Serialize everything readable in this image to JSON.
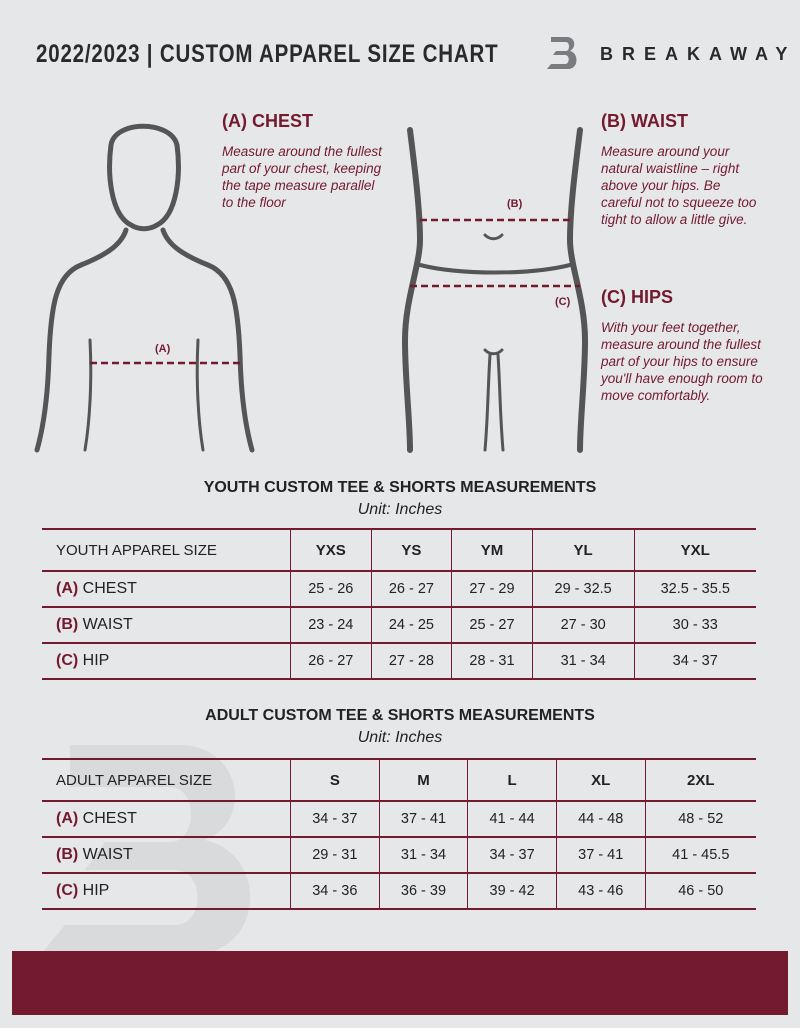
{
  "header": {
    "title": "2022/2023  |  CUSTOM APPAREL SIZE CHART",
    "brand": "BREAKAWAY",
    "logo_letter": "B"
  },
  "measures": {
    "chest": {
      "heading": "(A) CHEST",
      "text": "Measure around the fullest part of your chest, keeping the tape measure parallel to the floor",
      "marker": "(A)"
    },
    "waist": {
      "heading": "(B) WAIST",
      "text": "Measure around your natural waistline – right above your hips. Be careful not to squeeze too tight to allow a little give.",
      "marker": "(B)"
    },
    "hips": {
      "heading": "(C) HIPS",
      "text": "With your feet together, measure around the fullest part of your hips to ensure you'll have enough room to move comfortably.",
      "marker": "(C)"
    }
  },
  "youth": {
    "title": "YOUTH CUSTOM TEE & SHORTS MEASUREMENTS",
    "unit": "Unit: Inches",
    "label": "YOUTH APPAREL SIZE",
    "sizes": [
      "YXS",
      "YS",
      "YM",
      "YL",
      "YXL"
    ],
    "rows": [
      {
        "letter": "(A)",
        "name": "CHEST",
        "values": [
          "25 - 26",
          "26 - 27",
          "27 - 29",
          "29 - 32.5",
          "32.5 - 35.5"
        ]
      },
      {
        "letter": "(B)",
        "name": "WAIST",
        "values": [
          "23 - 24",
          "24 - 25",
          "25 - 27",
          "27 - 30",
          "30 - 33"
        ]
      },
      {
        "letter": "(C)",
        "name": "HIP",
        "values": [
          "26 - 27",
          "27 - 28",
          "28 - 31",
          "31 - 34",
          "34 - 37"
        ]
      }
    ]
  },
  "adult": {
    "title": "ADULT CUSTOM TEE & SHORTS MEASUREMENTS",
    "unit": "Unit: Inches",
    "label": "ADULT APPAREL SIZE",
    "sizes": [
      "S",
      "M",
      "L",
      "XL",
      "2XL"
    ],
    "rows": [
      {
        "letter": "(A)",
        "name": "CHEST",
        "values": [
          "34 - 37",
          "37 - 41",
          "41 - 44",
          "44 - 48",
          "48 - 52"
        ]
      },
      {
        "letter": "(B)",
        "name": "WAIST",
        "values": [
          "29 - 31",
          "31 - 34",
          "34 - 37",
          "37 - 41",
          "41 - 45.5"
        ]
      },
      {
        "letter": "(C)",
        "name": "HIP",
        "values": [
          "34 - 36",
          "36 - 39",
          "39 - 42",
          "43 - 46",
          "46 - 50"
        ]
      }
    ]
  },
  "colors": {
    "accent": "#731a2f",
    "background": "#e6e7e9"
  }
}
